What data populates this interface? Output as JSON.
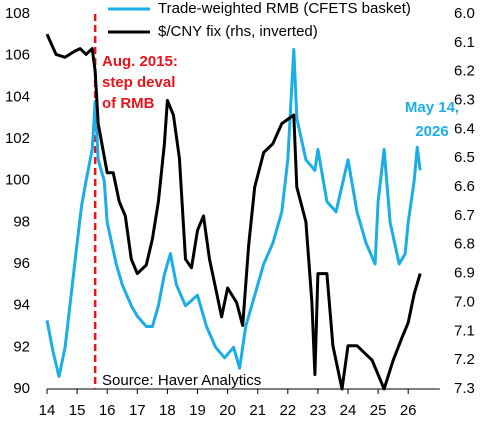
{
  "chart_data": {
    "type": "line",
    "legend": "top",
    "series": [
      {
        "name": "Trade-weighted RMB (CFETS basket)",
        "color": "#1aaee6",
        "axis": "y",
        "x": [
          14.0,
          14.2,
          14.4,
          14.6,
          14.8,
          15.0,
          15.15,
          15.3,
          15.5,
          15.6,
          15.7,
          15.9,
          16.0,
          16.3,
          16.5,
          16.8,
          17.0,
          17.3,
          17.5,
          17.7,
          17.9,
          18.1,
          18.3,
          18.6,
          19.0,
          19.3,
          19.6,
          19.9,
          20.2,
          20.4,
          20.6,
          20.9,
          21.2,
          21.5,
          21.8,
          22.0,
          22.2,
          22.3,
          22.6,
          22.9,
          23.0,
          23.3,
          23.6,
          24.0,
          24.3,
          24.6,
          24.9,
          25.0,
          25.2,
          25.4,
          25.7,
          25.9,
          26.0,
          26.2,
          26.3,
          26.4
        ],
        "values": [
          93.3,
          91.8,
          90.6,
          92.0,
          94.5,
          97.0,
          98.8,
          100.0,
          101.5,
          103.8,
          101.0,
          100.0,
          98.0,
          96.0,
          95.0,
          94.0,
          93.5,
          93.0,
          93.0,
          94.0,
          95.5,
          96.5,
          95.0,
          94.0,
          94.5,
          93.0,
          92.0,
          91.5,
          92.0,
          91.0,
          93.0,
          94.5,
          96.0,
          97.0,
          98.5,
          101.0,
          106.3,
          103.0,
          101.0,
          100.5,
          101.5,
          99.0,
          98.5,
          101.0,
          98.5,
          97.0,
          96.0,
          99.0,
          101.5,
          98.0,
          96.0,
          96.5,
          98.0,
          100.0,
          101.6,
          100.5
        ]
      },
      {
        "name": "$/CNY fix (rhs, inverted)",
        "color": "#000000",
        "axis": "y2",
        "x": [
          14.0,
          14.3,
          14.6,
          14.9,
          15.1,
          15.3,
          15.5,
          15.6,
          15.7,
          16.0,
          16.2,
          16.4,
          16.6,
          16.8,
          17.0,
          17.3,
          17.5,
          17.7,
          17.9,
          18.0,
          18.2,
          18.4,
          18.6,
          18.8,
          19.0,
          19.2,
          19.4,
          19.6,
          19.8,
          20.0,
          20.3,
          20.5,
          20.7,
          20.9,
          21.2,
          21.5,
          21.8,
          22.2,
          22.3,
          22.6,
          22.8,
          22.9,
          23.0,
          23.3,
          23.5,
          23.8,
          24.0,
          24.3,
          24.6,
          24.8,
          25.0,
          25.2,
          25.5,
          25.8,
          26.0,
          26.2,
          26.4
        ],
        "values": [
          6.07,
          6.14,
          6.15,
          6.13,
          6.12,
          6.14,
          6.12,
          6.2,
          6.38,
          6.55,
          6.55,
          6.65,
          6.7,
          6.85,
          6.9,
          6.87,
          6.78,
          6.65,
          6.45,
          6.3,
          6.35,
          6.5,
          6.85,
          6.88,
          6.75,
          6.7,
          6.85,
          6.95,
          7.05,
          6.95,
          7.0,
          7.08,
          6.8,
          6.6,
          6.48,
          6.45,
          6.38,
          6.35,
          6.6,
          6.72,
          7.0,
          7.25,
          6.9,
          6.9,
          7.15,
          7.3,
          7.15,
          7.15,
          7.18,
          7.2,
          7.25,
          7.3,
          7.2,
          7.12,
          7.07,
          6.97,
          6.9
        ]
      }
    ],
    "xlim": [
      14,
      27.05
    ],
    "xticks": [
      14,
      15,
      16,
      17,
      18,
      19,
      20,
      21,
      22,
      23,
      24,
      25,
      26
    ],
    "ylim": [
      90,
      108
    ],
    "yticks": [
      90,
      92,
      94,
      96,
      98,
      100,
      102,
      104,
      106,
      108
    ],
    "y2lim": [
      6,
      7.3
    ],
    "y2_inverted": true,
    "y2ticks": [
      {
        "value": 6,
        "label": "6.0"
      },
      6.1,
      6.2,
      6.3,
      6.4,
      6.5,
      6.6,
      6.7,
      6.8,
      6.9,
      {
        "value": 7,
        "label": "7.0"
      },
      7.1,
      7.2,
      7.3
    ],
    "event_line": {
      "x": 15.6,
      "color": "#e8141b"
    },
    "annotations": [
      {
        "lines": [
          "Aug. 2015:",
          "step deval",
          "of RMB"
        ],
        "color": "#e8141b"
      },
      {
        "lines": [
          "May 14,",
          "2026"
        ],
        "color": "#1aaee6"
      },
      {
        "lines": [
          "Source: Haver Analytics"
        ],
        "color": "#000000"
      }
    ]
  }
}
